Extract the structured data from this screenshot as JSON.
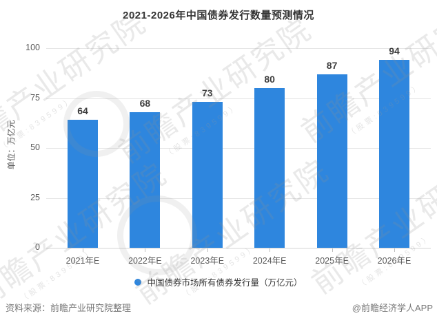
{
  "chart_data": {
    "type": "bar",
    "title": "2021-2026年中国债券发行数量预测情况",
    "unit_label": "单位：万亿元",
    "categories": [
      "2021年E",
      "2022年E",
      "2023年E",
      "2024年E",
      "2025年E",
      "2026年E"
    ],
    "values": [
      64,
      68,
      73,
      80,
      87,
      94
    ],
    "xlabel": "",
    "ylabel": "单位：万亿元",
    "ylim": [
      0,
      100
    ],
    "yticks": [
      0,
      25,
      50,
      75,
      100
    ],
    "grid": true,
    "bar_color": "#2e86de",
    "legend": {
      "label": "中国债券市场所有债券发行量（万亿元）",
      "marker": "circle",
      "marker_color": "#2e86de",
      "position": "bottom"
    }
  },
  "footer": {
    "source": "资料来源：前瞻产业研究院整理",
    "credit": "@前瞻经济学人APP"
  },
  "watermark": {
    "big": "前瞻产业研究院",
    "small": "（股票:839599）"
  }
}
